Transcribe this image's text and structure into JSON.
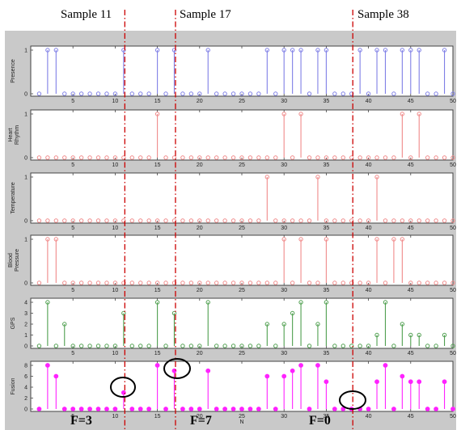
{
  "sample_labels": [
    "Sample 11",
    "Sample 17",
    "Sample 38"
  ],
  "fusion_annotations": [
    "F=3",
    "F=7",
    "F=0"
  ],
  "colors": {
    "figure_background": "#c9c9c9",
    "presence": "#7f7fe6",
    "heart_rhythm": "#f08a8a",
    "temperature": "#f08a8a",
    "blood_pressure": "#f08a8a",
    "gps": "#4f9f4f",
    "fusion": "#ff22ff",
    "sample_marker_line": "#cc0000"
  },
  "chart_data": [
    {
      "type": "stem",
      "ylabel": "Presence",
      "ylim": [
        0,
        1
      ],
      "yticks": [
        "0",
        "1"
      ],
      "xlim": [
        0,
        50
      ],
      "xticks": [
        "5",
        "10",
        "15",
        "20",
        "25",
        "30",
        "35",
        "40",
        "45",
        "50"
      ],
      "x": [
        1,
        2,
        3,
        4,
        5,
        6,
        7,
        8,
        9,
        10,
        11,
        12,
        13,
        14,
        15,
        16,
        17,
        18,
        19,
        20,
        21,
        22,
        23,
        24,
        25,
        26,
        27,
        28,
        29,
        30,
        31,
        32,
        33,
        34,
        35,
        36,
        37,
        38,
        39,
        40,
        41,
        42,
        43,
        44,
        45,
        46,
        47,
        48,
        49,
        50
      ],
      "values": [
        0,
        1,
        1,
        0,
        0,
        0,
        0,
        0,
        0,
        0,
        1,
        0,
        0,
        0,
        1,
        0,
        1,
        0,
        0,
        0,
        1,
        0,
        0,
        0,
        0,
        0,
        0,
        1,
        0,
        1,
        1,
        1,
        0,
        1,
        1,
        0,
        0,
        0,
        1,
        0,
        1,
        1,
        0,
        1,
        1,
        1,
        0,
        0,
        1,
        0
      ]
    },
    {
      "type": "stem",
      "ylabel": "Heart Rhythm",
      "ylim": [
        0,
        1
      ],
      "yticks": [
        "0",
        "1"
      ],
      "xlim": [
        0,
        50
      ],
      "xticks": [
        "5",
        "10",
        "15",
        "20",
        "25",
        "30",
        "35",
        "40",
        "45",
        "50"
      ],
      "x": [
        1,
        2,
        3,
        4,
        5,
        6,
        7,
        8,
        9,
        10,
        11,
        12,
        13,
        14,
        15,
        16,
        17,
        18,
        19,
        20,
        21,
        22,
        23,
        24,
        25,
        26,
        27,
        28,
        29,
        30,
        31,
        32,
        33,
        34,
        35,
        36,
        37,
        38,
        39,
        40,
        41,
        42,
        43,
        44,
        45,
        46,
        47,
        48,
        49,
        50
      ],
      "values": [
        0,
        0,
        0,
        0,
        0,
        0,
        0,
        0,
        0,
        0,
        0,
        0,
        0,
        0,
        1,
        0,
        0,
        0,
        0,
        0,
        0,
        0,
        0,
        0,
        0,
        0,
        0,
        0,
        0,
        1,
        0,
        1,
        0,
        0,
        0,
        0,
        0,
        0,
        0,
        0,
        0,
        0,
        0,
        1,
        0,
        1,
        0,
        0,
        0,
        0
      ]
    },
    {
      "type": "stem",
      "ylabel": "Temperature",
      "ylim": [
        0,
        1
      ],
      "yticks": [
        "0",
        "1"
      ],
      "xlim": [
        0,
        50
      ],
      "xticks": [
        "5",
        "10",
        "15",
        "20",
        "25",
        "30",
        "35",
        "40",
        "45",
        "50"
      ],
      "x": [
        1,
        2,
        3,
        4,
        5,
        6,
        7,
        8,
        9,
        10,
        11,
        12,
        13,
        14,
        15,
        16,
        17,
        18,
        19,
        20,
        21,
        22,
        23,
        24,
        25,
        26,
        27,
        28,
        29,
        30,
        31,
        32,
        33,
        34,
        35,
        36,
        37,
        38,
        39,
        40,
        41,
        42,
        43,
        44,
        45,
        46,
        47,
        48,
        49,
        50
      ],
      "values": [
        0,
        0,
        0,
        0,
        0,
        0,
        0,
        0,
        0,
        0,
        0,
        0,
        0,
        0,
        0,
        0,
        0,
        0,
        0,
        0,
        0,
        0,
        0,
        0,
        0,
        0,
        0,
        1,
        0,
        0,
        0,
        0,
        0,
        1,
        0,
        0,
        0,
        0,
        0,
        0,
        1,
        0,
        0,
        0,
        0,
        0,
        0,
        0,
        0,
        0
      ]
    },
    {
      "type": "stem",
      "ylabel": "Blood Pressure",
      "ylim": [
        0,
        1
      ],
      "yticks": [
        "0",
        "1"
      ],
      "xlim": [
        0,
        50
      ],
      "xticks": [
        "5",
        "10",
        "15",
        "20",
        "25",
        "30",
        "35",
        "40",
        "45",
        "50"
      ],
      "x": [
        1,
        2,
        3,
        4,
        5,
        6,
        7,
        8,
        9,
        10,
        11,
        12,
        13,
        14,
        15,
        16,
        17,
        18,
        19,
        20,
        21,
        22,
        23,
        24,
        25,
        26,
        27,
        28,
        29,
        30,
        31,
        32,
        33,
        34,
        35,
        36,
        37,
        38,
        39,
        40,
        41,
        42,
        43,
        44,
        45,
        46,
        47,
        48,
        49,
        50
      ],
      "values": [
        0,
        1,
        1,
        0,
        0,
        0,
        0,
        0,
        0,
        0,
        0,
        0,
        0,
        0,
        0,
        0,
        0,
        0,
        0,
        0,
        0,
        0,
        0,
        0,
        0,
        0,
        0,
        0,
        0,
        1,
        0,
        1,
        0,
        0,
        1,
        0,
        0,
        0,
        0,
        0,
        1,
        0,
        1,
        1,
        0,
        0,
        0,
        0,
        0,
        0
      ]
    },
    {
      "type": "stem",
      "ylabel": "GPS",
      "ylim": [
        0,
        4
      ],
      "yticks": [
        "0",
        "1",
        "2",
        "3",
        "4"
      ],
      "xlim": [
        0,
        50
      ],
      "xticks": [
        "5",
        "10",
        "15",
        "20",
        "25",
        "30",
        "35",
        "40",
        "45",
        "50"
      ],
      "x": [
        1,
        2,
        3,
        4,
        5,
        6,
        7,
        8,
        9,
        10,
        11,
        12,
        13,
        14,
        15,
        16,
        17,
        18,
        19,
        20,
        21,
        22,
        23,
        24,
        25,
        26,
        27,
        28,
        29,
        30,
        31,
        32,
        33,
        34,
        35,
        36,
        37,
        38,
        39,
        40,
        41,
        42,
        43,
        44,
        45,
        46,
        47,
        48,
        49,
        50
      ],
      "values": [
        0,
        4,
        0,
        2,
        0,
        0,
        0,
        0,
        0,
        0,
        3,
        0,
        0,
        0,
        4,
        0,
        3,
        0,
        0,
        0,
        4,
        0,
        0,
        0,
        0,
        0,
        0,
        2,
        0,
        2,
        3,
        4,
        0,
        2,
        4,
        0,
        0,
        0,
        0,
        0,
        1,
        4,
        0,
        2,
        1,
        1,
        0,
        0,
        1,
        0
      ]
    },
    {
      "type": "stem",
      "ylabel": "Fusion",
      "ylim": [
        0,
        8
      ],
      "yticks": [
        "0",
        "2",
        "4",
        "6",
        "8"
      ],
      "xlim": [
        0,
        50
      ],
      "xticks": [
        "5",
        "10",
        "15",
        "20",
        "25",
        "30",
        "35",
        "40",
        "45",
        "50"
      ],
      "xlabel": "N",
      "x": [
        1,
        2,
        3,
        4,
        5,
        6,
        7,
        8,
        9,
        10,
        11,
        12,
        13,
        14,
        15,
        16,
        17,
        18,
        19,
        20,
        21,
        22,
        23,
        24,
        25,
        26,
        27,
        28,
        29,
        30,
        31,
        32,
        33,
        34,
        35,
        36,
        37,
        38,
        39,
        40,
        41,
        42,
        43,
        44,
        45,
        46,
        47,
        48,
        49,
        50
      ],
      "values": [
        0,
        8,
        6,
        0,
        0,
        0,
        0,
        0,
        0,
        0,
        3,
        0,
        0,
        0,
        8,
        0,
        7,
        0,
        0,
        0,
        7,
        0,
        0,
        0,
        0,
        0,
        0,
        6,
        0,
        6,
        7,
        8,
        0,
        8,
        5,
        0,
        0,
        0,
        0,
        0,
        5,
        8,
        0,
        6,
        5,
        5,
        0,
        0,
        5,
        0
      ]
    }
  ]
}
